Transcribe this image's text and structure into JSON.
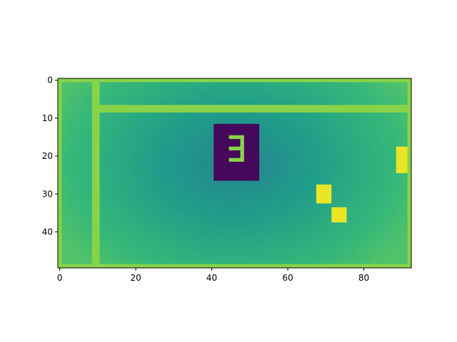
{
  "chart_data": {
    "type": "heatmap",
    "title": "",
    "xlabel": "",
    "ylabel": "",
    "grid_size": {
      "cols": 93,
      "rows": 50
    },
    "xlim": [
      -0.5,
      92.5
    ],
    "ylim": [
      49.5,
      -0.5
    ],
    "x_ticks": [
      0,
      20,
      40,
      60,
      80
    ],
    "y_ticks": [
      0,
      10,
      20,
      30,
      40
    ],
    "x_tick_labels": [
      "0",
      "20",
      "40",
      "60",
      "80"
    ],
    "y_tick_labels": [
      "0",
      "10",
      "20",
      "30",
      "40"
    ],
    "colormap": "viridis",
    "value_range": [
      0,
      1
    ],
    "background_gradient": {
      "center": [
        46,
        22
      ],
      "min_value": 0.45,
      "max_value": 0.72
    },
    "regions": [
      {
        "name": "outer-border-top",
        "cells": [
          0,
          0,
          92,
          0
        ],
        "value": 0.82
      },
      {
        "name": "outer-border-bottom",
        "cells": [
          0,
          49,
          92,
          49
        ],
        "value": 0.82
      },
      {
        "name": "outer-border-left",
        "cells": [
          0,
          0,
          0,
          49
        ],
        "value": 0.82
      },
      {
        "name": "outer-border-right",
        "cells": [
          92,
          0,
          92,
          49
        ],
        "value": 0.82
      },
      {
        "name": "left-panel-divider",
        "cells": [
          9,
          0,
          10,
          49
        ],
        "value": 0.82
      },
      {
        "name": "top-band-line",
        "cells": [
          10,
          7,
          92,
          8
        ],
        "value": 0.82
      },
      {
        "name": "dark-square",
        "cells": [
          41,
          12,
          52,
          26
        ],
        "value": 0.02
      },
      {
        "name": "dark-square-glyph-top",
        "cells": [
          45,
          15,
          48,
          15
        ],
        "value": 0.82
      },
      {
        "name": "dark-square-glyph-mid",
        "cells": [
          45,
          18,
          48,
          18
        ],
        "value": 0.82
      },
      {
        "name": "dark-square-glyph-bot",
        "cells": [
          45,
          21,
          48,
          21
        ],
        "value": 0.82
      },
      {
        "name": "dark-square-glyph-right",
        "cells": [
          48,
          15,
          48,
          21
        ],
        "value": 0.82
      },
      {
        "name": "yellow-block-a",
        "cells": [
          68,
          28,
          71,
          32
        ],
        "value": 0.97
      },
      {
        "name": "yellow-block-b",
        "cells": [
          72,
          34,
          75,
          37
        ],
        "value": 0.97
      },
      {
        "name": "yellow-block-c",
        "cells": [
          89,
          18,
          91,
          24
        ],
        "value": 0.97
      }
    ]
  }
}
